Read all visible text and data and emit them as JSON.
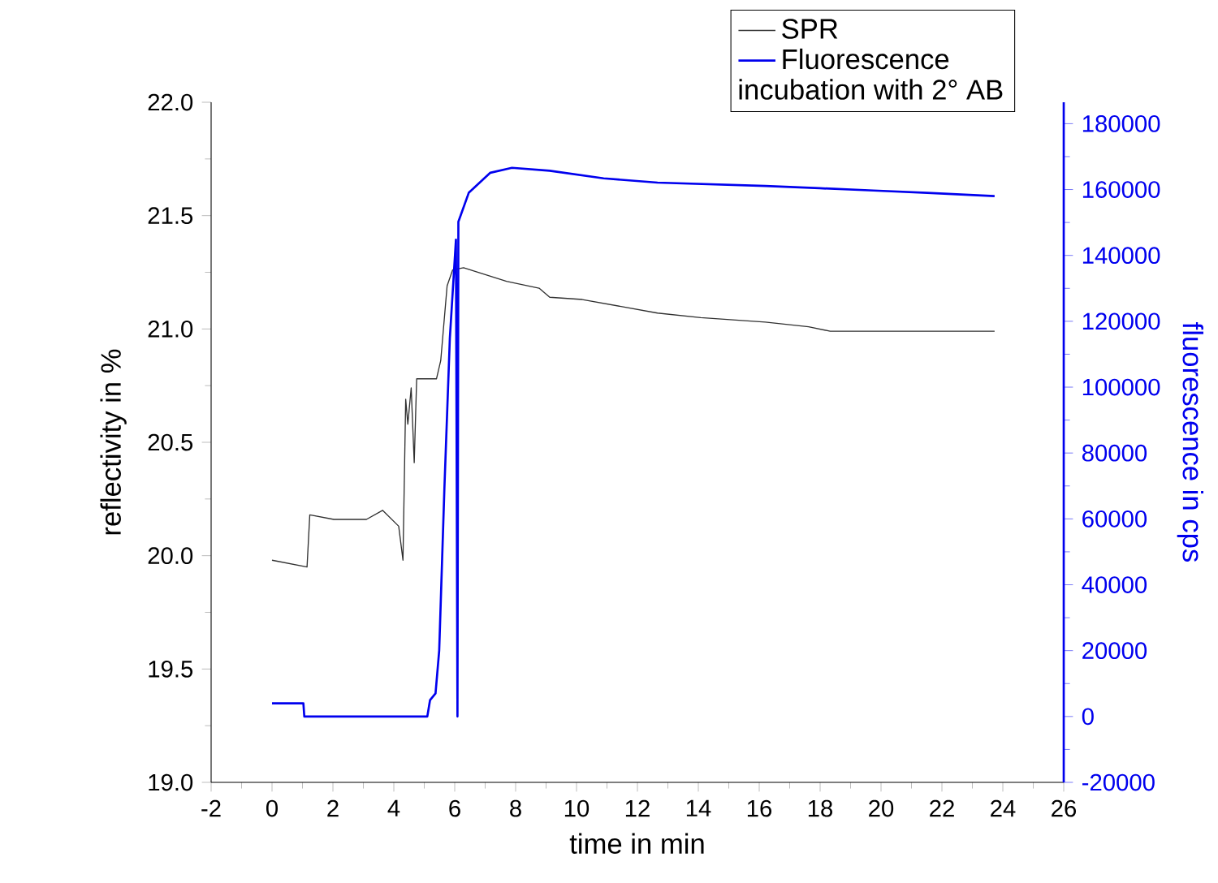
{
  "chart_data": {
    "type": "line",
    "xlabel": "time in min",
    "ylabel": "reflectivity in %",
    "y2label": "fluorescence in cps",
    "legend_title": "incubation with 2° AB",
    "legend": "top right",
    "xlim": [
      -2,
      26
    ],
    "xticks": [
      -2,
      0,
      2,
      4,
      6,
      8,
      10,
      12,
      14,
      16,
      18,
      20,
      22,
      24,
      26
    ],
    "ylim": [
      19,
      22
    ],
    "yticks": [
      {
        "value": 19,
        "label": "19.0"
      },
      {
        "value": 19.5,
        "label": "19.5"
      },
      {
        "value": 20,
        "label": "20.0"
      },
      {
        "value": 20.5,
        "label": "20.5"
      },
      {
        "value": 21,
        "label": "21.0"
      },
      {
        "value": 21.5,
        "label": "21.5"
      },
      {
        "value": 22,
        "label": "22.0"
      }
    ],
    "y2lim": [
      -20000,
      186500
    ],
    "y2ticks": [
      -20000,
      0,
      20000,
      40000,
      60000,
      80000,
      100000,
      120000,
      140000,
      160000,
      180000
    ],
    "series": [
      {
        "name": "SPR",
        "color": "#303030",
        "x": [
          0,
          1.15,
          1.24,
          2.03,
          3.1,
          3.63,
          4.16,
          4.3,
          4.39,
          4.46,
          4.57,
          4.67,
          4.75,
          5.4,
          5.54,
          5.75,
          5.93,
          6.29,
          7.7,
          8.77,
          9.12,
          10.19,
          12.66,
          14.08,
          16.2,
          17.62,
          18.33,
          19.76,
          23.73
        ],
        "values": [
          19.98,
          19.95,
          20.18,
          20.16,
          20.16,
          20.2,
          20.13,
          19.98,
          20.69,
          20.58,
          20.74,
          20.41,
          20.78,
          20.78,
          20.86,
          21.19,
          21.26,
          21.27,
          21.21,
          21.18,
          21.14,
          21.13,
          21.07,
          21.05,
          21.03,
          21.01,
          20.99,
          20.99,
          20.99
        ]
      },
      {
        "name": "Fluorescence",
        "color": "#0000ee",
        "axis": "y2",
        "x": [
          0,
          1.03,
          1.06,
          5.1,
          5.19,
          5.37,
          5.49,
          5.66,
          5.84,
          6.04,
          6.09,
          6.12,
          6.46,
          7.17,
          7.88,
          9.12,
          10.89,
          12.66,
          14.43,
          16.2,
          17.98,
          19.75,
          21.52,
          23.73
        ],
        "values": [
          4000,
          4000,
          0,
          0,
          5000,
          7000,
          20000,
          69000,
          114900,
          144800,
          0,
          150200,
          159000,
          165100,
          166600,
          165700,
          163400,
          162100,
          161600,
          161100,
          160400,
          159700,
          159000,
          158000
        ]
      }
    ]
  }
}
